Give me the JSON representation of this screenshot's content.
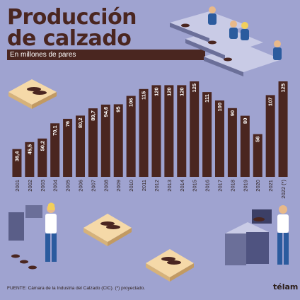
{
  "header": {
    "title_line1": "Producción",
    "title_line2": "de calzado",
    "subtitle": "En millones de pares"
  },
  "footer": {
    "source": "FUENTE: Cámara de la Industria del Calzado (CIC). (*) proyectado."
  },
  "logo": {
    "text": "télam"
  },
  "colors": {
    "bar": "#4a2620",
    "background": "#9fa3d0",
    "accent_box": "#f5d9a8",
    "shirt": "#2b5b9e"
  },
  "chart_data": {
    "type": "bar",
    "title": "Producción de calzado",
    "subtitle": "En millones de pares",
    "categories": [
      "2001",
      "2002",
      "2003",
      "2004",
      "2005",
      "2006",
      "2007",
      "2008",
      "2009",
      "2010",
      "2011",
      "2012",
      "2013",
      "2014",
      "2015",
      "2016",
      "2017",
      "2018",
      "2019",
      "2020",
      "2021",
      "2022 (*)"
    ],
    "values": [
      36.4,
      45.5,
      50.2,
      70.1,
      76,
      80.2,
      89.7,
      94.6,
      95,
      106,
      115,
      120,
      120,
      120,
      125,
      111,
      100,
      90,
      80,
      56,
      107,
      125
    ],
    "value_labels": [
      "36,4",
      "45,5",
      "50,2",
      "70,1",
      "76",
      "80,2",
      "89,7",
      "94,6",
      "95",
      "106",
      "115",
      "120",
      "120",
      "120",
      "125",
      "111",
      "100",
      "90",
      "80",
      "56",
      "107",
      "125"
    ],
    "ylim": [
      0,
      125
    ],
    "grid": false
  }
}
